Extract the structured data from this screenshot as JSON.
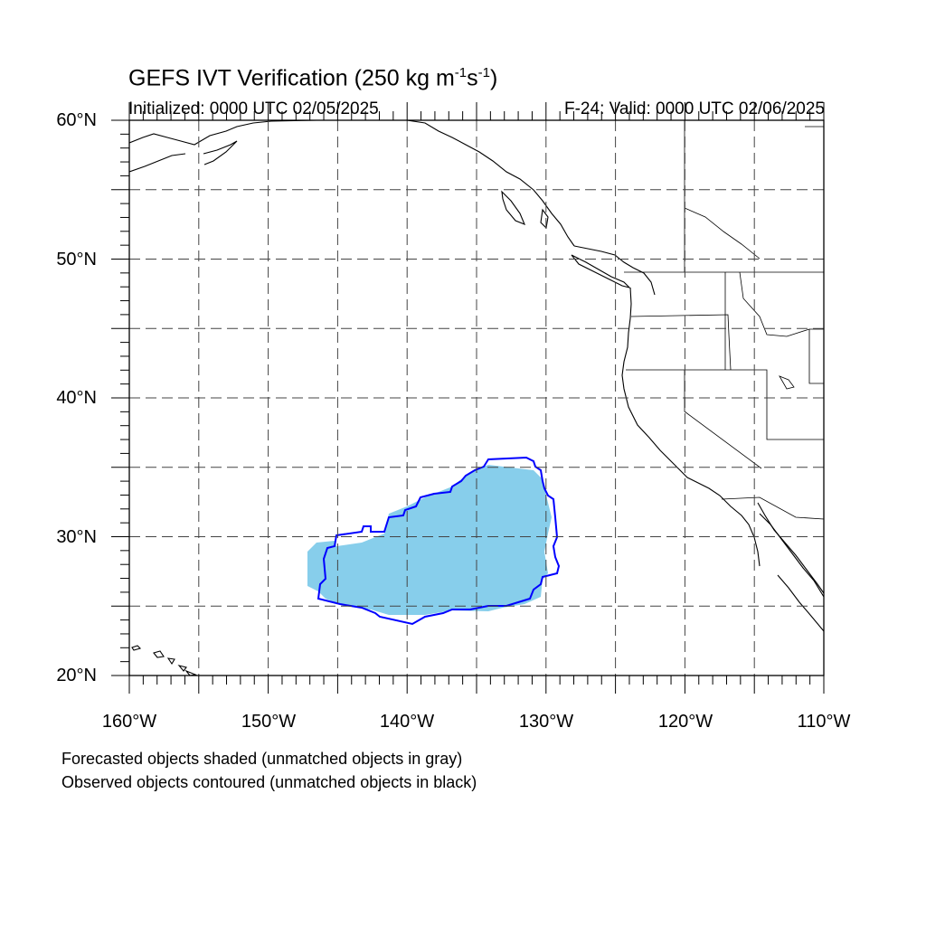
{
  "title": {
    "main": "GEFS IVT Verification (250 kg m",
    "sup1": "-1",
    "mid": "s",
    "sup2": "-1",
    "end": ")"
  },
  "initialized": "Initialized: 0000 UTC 02/05/2025",
  "valid": "F-24: Valid: 0000 UTC 02/06/2025",
  "map": {
    "lon_range": [
      -160,
      -110
    ],
    "lat_range": [
      20,
      60
    ],
    "lat_labels": [
      "20°N",
      "30°N",
      "40°N",
      "50°N",
      "60°N"
    ],
    "lon_labels": [
      "160°W",
      "150°W",
      "140°W",
      "130°W",
      "120°W",
      "110°W"
    ],
    "grid_spacing_deg": 5,
    "forecast_fill_color": "#87ceeb",
    "observed_contour_color": "#0000ff"
  },
  "notes": {
    "line1": "Forecasted objects shaded (unmatched objects in gray)",
    "line2": "Observed objects contoured (unmatched objects in black)"
  }
}
